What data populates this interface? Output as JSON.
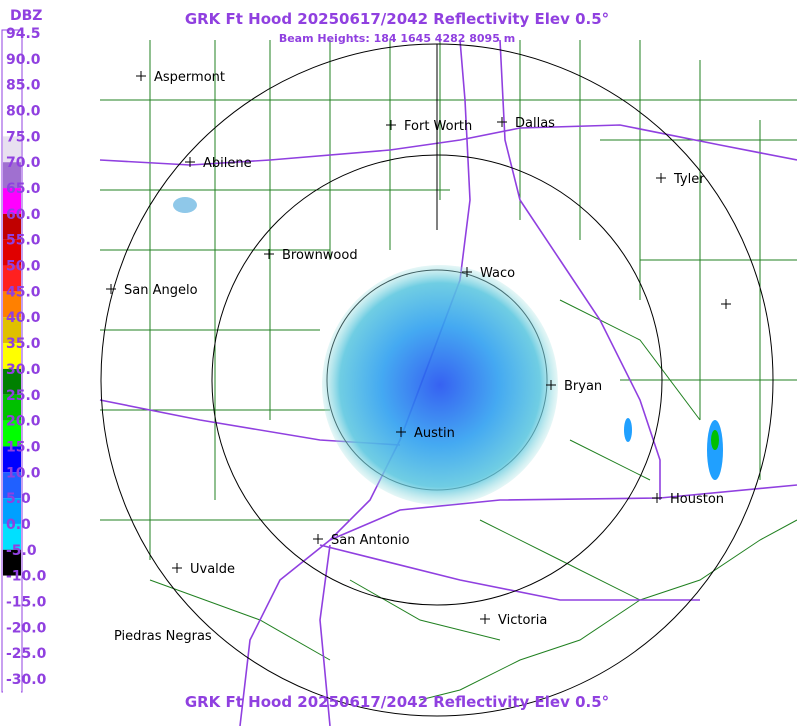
{
  "header": {
    "title": "GRK Ft Hood 20250617/2042 Reflectivity Elev 0.5°",
    "subtitle": "Beam Heights: 184 1645 4282 8095 m",
    "footer": "GRK Ft Hood 20250617/2042 Reflectivity Elev 0.5°"
  },
  "legend": {
    "unit": "DBZ",
    "labels": [
      "94.5",
      "90.0",
      "85.0",
      "80.0",
      "75.0",
      "70.0",
      "65.0",
      "60.0",
      "55.0",
      "50.0",
      "45.0",
      "40.0",
      "35.0",
      "30.0",
      "25.0",
      "20.0",
      "15.0",
      "10.0",
      "5.0",
      "0.0",
      "-5.0",
      "-10.0",
      "-15.0",
      "-20.0",
      "-25.0",
      "-30.0"
    ],
    "colors": [
      "#ffffff",
      "#ffffff",
      "#ffffff",
      "#ffffff",
      "#e8e0f0",
      "#a070d0",
      "#ff00ff",
      "#c00000",
      "#e00000",
      "#ff2020",
      "#ff8000",
      "#e0c000",
      "#ffff00",
      "#008000",
      "#00c000",
      "#00ff00",
      "#0000ff",
      "#2060ff",
      "#00a0ff",
      "#00e0ff",
      "#000000",
      "#ffffff",
      "#ffffff",
      "#ffffff",
      "#ffffff",
      "#ffffff"
    ]
  },
  "cities": [
    "Aspermont",
    "Fort Worth",
    "Dallas",
    "Abilene",
    "Tyler",
    "Brownwood",
    "Waco",
    "San Angelo",
    "Bryan",
    "Austin",
    "Houston",
    "San Antonio",
    "Uvalde",
    "Victoria",
    "Piedras Negras"
  ]
}
